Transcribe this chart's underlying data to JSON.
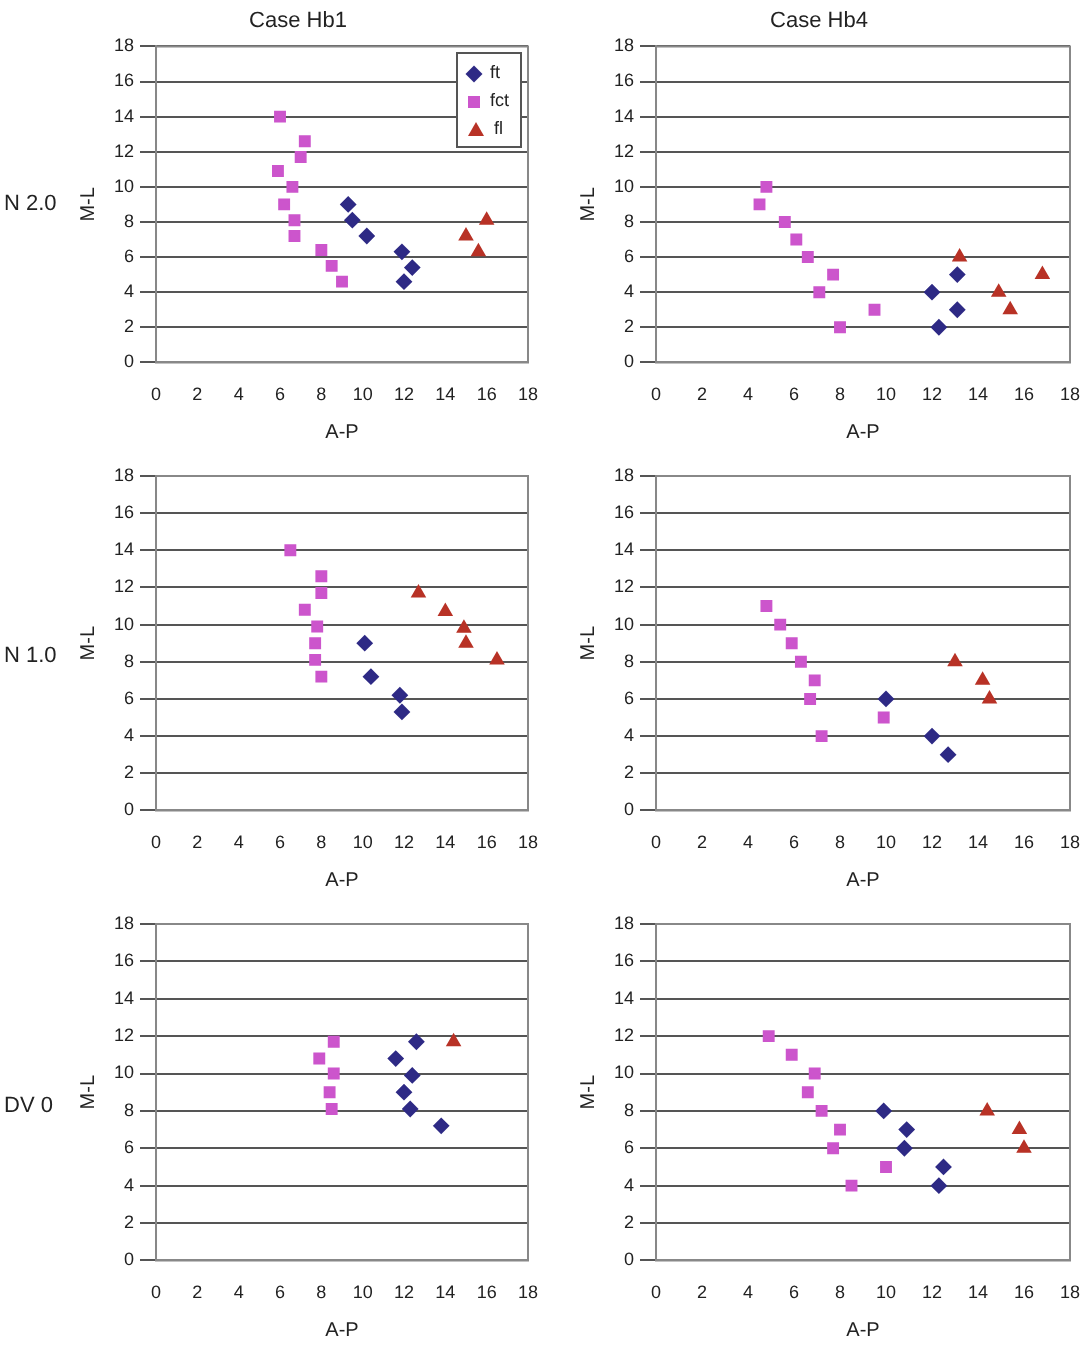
{
  "chart_data": [
    {
      "type": "scatter",
      "title": "Case Hb1",
      "xlabel": "A-P",
      "ylabel": "M-L",
      "annotations": [
        "N 2.0"
      ],
      "xlim": [
        0,
        18
      ],
      "xticks": [
        0,
        2,
        4,
        6,
        8,
        10,
        12,
        14,
        16,
        18
      ],
      "ylim": [
        0,
        18
      ],
      "yticks": [
        0,
        2,
        4,
        6,
        8,
        10,
        12,
        14,
        16,
        18
      ],
      "grid": "y",
      "legend": "top right",
      "series": [
        {
          "name": "ft",
          "color": "#2e2a85",
          "marker": "diamond",
          "x": [
            9.3,
            9.5,
            10.2,
            11.9,
            12.4,
            12.0
          ],
          "values": [
            9.0,
            8.1,
            7.2,
            6.3,
            5.4,
            4.6
          ]
        },
        {
          "name": "fct",
          "color": "#cc55cc",
          "marker": "square",
          "x": [
            6.0,
            7.2,
            7.0,
            5.9,
            6.6,
            6.2,
            6.7,
            6.7,
            8.0,
            8.5,
            9.0
          ],
          "values": [
            14.0,
            12.6,
            11.7,
            10.9,
            10.0,
            9.0,
            8.1,
            7.2,
            6.4,
            5.5,
            4.6
          ]
        },
        {
          "name": "fl",
          "color": "#b83226",
          "marker": "triangle",
          "x": [
            15.0,
            16.0,
            15.6
          ],
          "values": [
            7.2,
            8.1,
            6.3
          ]
        }
      ]
    },
    {
      "type": "scatter",
      "title": "Case Hb4",
      "xlabel": "A-P",
      "ylabel": "M-L",
      "xlim": [
        0,
        18
      ],
      "xticks": [
        0,
        2,
        4,
        6,
        8,
        10,
        12,
        14,
        16,
        18
      ],
      "ylim": [
        0,
        18
      ],
      "yticks": [
        0,
        2,
        4,
        6,
        8,
        10,
        12,
        14,
        16,
        18
      ],
      "grid": "y",
      "series": [
        {
          "color": "#2e2a85",
          "marker": "diamond",
          "x": [
            12.0,
            12.3,
            13.1,
            13.1
          ],
          "values": [
            4,
            2,
            5,
            3
          ]
        },
        {
          "color": "#cc55cc",
          "marker": "square",
          "x": [
            4.8,
            4.5,
            5.6,
            6.1,
            6.6,
            7.7,
            7.1,
            8.0,
            9.5
          ],
          "values": [
            10,
            9,
            8,
            7,
            6,
            5,
            4,
            2,
            3
          ]
        },
        {
          "color": "#b83226",
          "marker": "triangle",
          "x": [
            13.2,
            14.9,
            15.4,
            16.8
          ],
          "values": [
            6,
            4,
            3,
            5
          ]
        }
      ]
    },
    {
      "type": "scatter",
      "xlabel": "A-P",
      "ylabel": "M-L",
      "annotations": [
        "N 1.0"
      ],
      "xlim": [
        0,
        18
      ],
      "xticks": [
        0,
        2,
        4,
        6,
        8,
        10,
        12,
        14,
        16,
        18
      ],
      "ylim": [
        0,
        18
      ],
      "yticks": [
        0,
        2,
        4,
        6,
        8,
        10,
        12,
        14,
        16,
        18
      ],
      "grid": "y",
      "series": [
        {
          "color": "#2e2a85",
          "marker": "diamond",
          "x": [
            10.1,
            10.4,
            11.8,
            11.9
          ],
          "values": [
            9.0,
            7.2,
            6.2,
            5.3
          ]
        },
        {
          "color": "#cc55cc",
          "marker": "square",
          "x": [
            6.5,
            8.0,
            8.0,
            7.2,
            7.8,
            7.7,
            7.7,
            8.0
          ],
          "values": [
            14.0,
            12.6,
            11.7,
            10.8,
            9.9,
            9.0,
            8.1,
            7.2
          ]
        },
        {
          "color": "#b83226",
          "marker": "triangle",
          "x": [
            12.7,
            14.0,
            14.9,
            15.0,
            16.5
          ],
          "values": [
            11.7,
            10.7,
            9.8,
            9.0,
            8.1
          ]
        }
      ]
    },
    {
      "type": "scatter",
      "xlabel": "A-P",
      "ylabel": "M-L",
      "xlim": [
        0,
        18
      ],
      "xticks": [
        0,
        2,
        4,
        6,
        8,
        10,
        12,
        14,
        16,
        18
      ],
      "ylim": [
        0,
        18
      ],
      "yticks": [
        0,
        2,
        4,
        6,
        8,
        10,
        12,
        14,
        16,
        18
      ],
      "grid": "y",
      "series": [
        {
          "color": "#2e2a85",
          "marker": "diamond",
          "x": [
            10.0,
            12.0,
            12.7
          ],
          "values": [
            6,
            4,
            3
          ]
        },
        {
          "color": "#cc55cc",
          "marker": "square",
          "x": [
            4.8,
            5.4,
            5.9,
            6.3,
            6.9,
            6.7,
            7.2,
            9.9
          ],
          "values": [
            11,
            10,
            9,
            8,
            7,
            6,
            4,
            5
          ]
        },
        {
          "color": "#b83226",
          "marker": "triangle",
          "x": [
            13.0,
            14.2,
            14.5
          ],
          "values": [
            8,
            7,
            6
          ]
        }
      ]
    },
    {
      "type": "scatter",
      "xlabel": "A-P",
      "ylabel": "M-L",
      "annotations": [
        "DV 0"
      ],
      "xlim": [
        0,
        18
      ],
      "xticks": [
        0,
        2,
        4,
        6,
        8,
        10,
        12,
        14,
        16,
        18
      ],
      "ylim": [
        0,
        18
      ],
      "yticks": [
        0,
        2,
        4,
        6,
        8,
        10,
        12,
        14,
        16,
        18
      ],
      "grid": "y",
      "series": [
        {
          "color": "#2e2a85",
          "marker": "diamond",
          "x": [
            12.6,
            11.6,
            12.4,
            12.0,
            12.3,
            13.8
          ],
          "values": [
            11.7,
            10.8,
            9.9,
            9.0,
            8.1,
            7.2
          ]
        },
        {
          "color": "#cc55cc",
          "marker": "square",
          "x": [
            8.6,
            7.9,
            8.6,
            8.4,
            8.5
          ],
          "values": [
            11.7,
            10.8,
            10.0,
            9.0,
            8.1
          ]
        },
        {
          "color": "#b83226",
          "marker": "triangle",
          "x": [
            14.4
          ],
          "values": [
            11.7
          ]
        }
      ]
    },
    {
      "type": "scatter",
      "xlabel": "A-P",
      "ylabel": "M-L",
      "xlim": [
        0,
        18
      ],
      "xticks": [
        0,
        2,
        4,
        6,
        8,
        10,
        12,
        14,
        16,
        18
      ],
      "ylim": [
        0,
        18
      ],
      "yticks": [
        0,
        2,
        4,
        6,
        8,
        10,
        12,
        14,
        16,
        18
      ],
      "grid": "y",
      "series": [
        {
          "color": "#2e2a85",
          "marker": "diamond",
          "x": [
            9.9,
            10.9,
            10.8,
            12.5,
            12.3
          ],
          "values": [
            8,
            7,
            6,
            5,
            4
          ]
        },
        {
          "color": "#cc55cc",
          "marker": "square",
          "x": [
            4.9,
            5.9,
            6.9,
            6.6,
            7.2,
            8.0,
            7.7,
            8.5,
            10.0
          ],
          "values": [
            12,
            11,
            10,
            9,
            8,
            7,
            6,
            4,
            5
          ]
        },
        {
          "color": "#b83226",
          "marker": "triangle",
          "x": [
            14.4,
            15.8,
            16.0
          ],
          "values": [
            8,
            7,
            6
          ]
        }
      ]
    }
  ]
}
